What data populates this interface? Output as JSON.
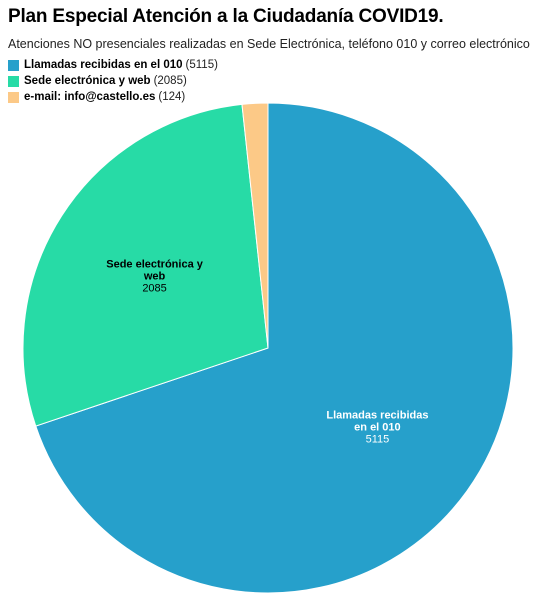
{
  "chart_data": {
    "type": "pie",
    "title": "Plan Especial Atención a la Ciudadanía COVID19.",
    "subtitle": "Atenciones NO presenciales realizadas en Sede Electrónica, teléfono 010 y correo electrónico",
    "legend": "top-left",
    "slices": [
      {
        "label": "Llamadas recibidas en el 010",
        "label_lines": [
          "Llamadas recibidas",
          "en el 010"
        ],
        "value": 5115,
        "value_text": "(5115)",
        "color": "#26a0cb",
        "label_color": "#ffffff"
      },
      {
        "label": "Sede electrónica y web",
        "label_lines": [
          "Sede electrónica y",
          "web"
        ],
        "value": 2085,
        "value_text": "(2085)",
        "color": "#27dba6",
        "label_color": "#000000"
      },
      {
        "label": "e-mail: info@castello.es",
        "label_lines": [],
        "value": 124,
        "value_text": "(124)",
        "color": "#fcc987",
        "label_color": "#000000"
      }
    ]
  }
}
